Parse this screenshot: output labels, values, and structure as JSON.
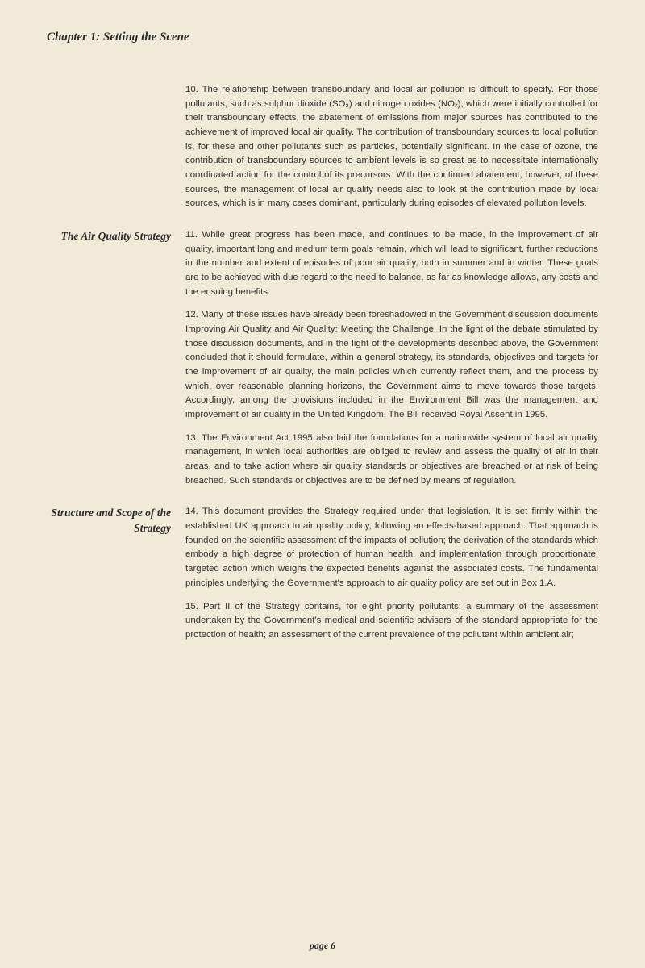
{
  "chapter_title": "Chapter 1: Setting the Scene",
  "sections": [
    {
      "label": "",
      "paragraphs": [
        "10. The relationship between transboundary and local air pollution is difficult to specify. For those pollutants, such as sulphur dioxide (SO₂) and nitrogen oxides (NOₓ), which were initially controlled for their transboundary effects, the abatement of emissions from major sources has contributed to the achievement of improved local air quality. The contribution of transboundary sources to local pollution is, for these and other pollutants such as particles, potentially significant. In the case of ozone, the contribution of transboundary sources to ambient levels is so great as to necessitate internationally coordinated action for the control of its precursors. With the continued abatement, however, of these sources, the management of local air quality needs also to look at the contribution made by local sources, which is in many cases dominant, particularly during episodes of elevated pollution levels."
      ]
    },
    {
      "label": "The Air Quality Strategy",
      "paragraphs": [
        "11. While great progress has been made, and continues to be made, in the improvement of air quality, important long and medium term goals remain, which will lead to significant, further reductions in the number and extent of episodes of poor air quality, both in summer and in winter. These goals are to be achieved with due regard to the need to balance, as far as knowledge allows, any costs and the ensuing benefits.",
        "12. Many of these issues have already been foreshadowed in the Government discussion documents Improving Air Quality and Air Quality: Meeting the Challenge. In the light of the debate stimulated by those discussion documents, and in the light of the developments described above, the Government concluded that it should formulate, within a general strategy, its standards, objectives and targets for the improvement of air quality, the main policies which currently reflect them, and the process by which, over reasonable planning horizons, the Government aims to move towards those targets. Accordingly, among the provisions included in the Environment Bill was the management and improvement of air quality in the United Kingdom. The Bill received Royal Assent in 1995.",
        "13. The Environment Act 1995 also laid the foundations for a nationwide system of local air quality management, in which local authorities are obliged to review and assess the quality of air in their areas, and to take action where air quality standards or objectives are breached or at risk of being breached. Such standards or objectives are to be defined by means of regulation."
      ]
    },
    {
      "label": "Structure and Scope of the Strategy",
      "paragraphs": [
        "14. This document provides the Strategy required under that legislation. It is set firmly within the established UK approach to air quality policy, following an effects-based approach. That approach is founded on the scientific assessment of the impacts of pollution; the derivation of the standards which embody a high degree of protection of human health, and implementation through proportionate, targeted action which weighs the expected benefits against the associated costs. The fundamental principles underlying the Government's approach to air quality policy are set out in Box 1.A.",
        "15. Part II of the Strategy contains, for eight priority pollutants: a summary of the assessment undertaken by the Government's medical and scientific advisers of the standard appropriate for the protection of health; an assessment of the current prevalence of the pollutant within ambient air;"
      ]
    }
  ],
  "footer": "page 6"
}
